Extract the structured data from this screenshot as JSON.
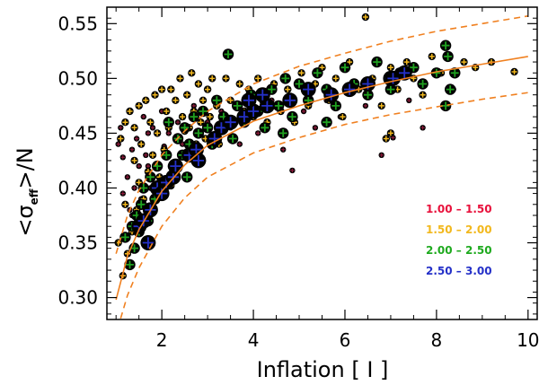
{
  "chart_data": {
    "type": "scatter",
    "title": "",
    "xlabel": "Inflation [ I ]",
    "ylabel": "<σ_eff>/N",
    "ylabel_parts": {
      "open": "<σ",
      "sub": "eff",
      "close": ">/N"
    },
    "xlim": [
      0.8,
      10.2
    ],
    "ylim": [
      0.28,
      0.565
    ],
    "xticks": [
      2,
      4,
      6,
      8,
      10
    ],
    "yticks": [
      0.3,
      0.35,
      0.4,
      0.45,
      0.5,
      0.55
    ],
    "ytick_labels": [
      "0.30",
      "0.35",
      "0.40",
      "0.45",
      "0.50",
      "0.55"
    ],
    "legend": [
      {
        "label": "1.00 – 1.50",
        "color": "#e8113c"
      },
      {
        "label": "1.50 – 2.00",
        "color": "#f2b81e"
      },
      {
        "label": "2.00 – 2.50",
        "color": "#1faa1f"
      },
      {
        "label": "2.50 – 3.00",
        "color": "#2430c8"
      }
    ],
    "colors": {
      "class1": "#8b1a3a",
      "class2": "#f2b81e",
      "class3": "#1fa01f",
      "class4": "#2430c8",
      "fit": "#f08020",
      "marker_edge": "#000000"
    },
    "fit_curves": [
      {
        "name": "central",
        "style": "solid",
        "x": [
          1.0,
          1.25,
          1.5,
          2.0,
          2.5,
          3.0,
          4.0,
          5.0,
          6.0,
          7.0,
          8.0,
          9.0,
          10.0
        ],
        "y": [
          0.298,
          0.338,
          0.362,
          0.397,
          0.421,
          0.439,
          0.461,
          0.475,
          0.487,
          0.497,
          0.506,
          0.513,
          0.52
        ]
      },
      {
        "name": "upper",
        "style": "dashed",
        "x": [
          1.0,
          1.25,
          1.5,
          2.0,
          2.5,
          3.0,
          4.0,
          5.0,
          6.0,
          7.0,
          8.0,
          9.0,
          10.0
        ],
        "y": [
          0.34,
          0.375,
          0.398,
          0.43,
          0.452,
          0.47,
          0.495,
          0.511,
          0.523,
          0.534,
          0.543,
          0.55,
          0.557
        ]
      },
      {
        "name": "lower",
        "style": "dashed",
        "x": [
          1.1,
          1.25,
          1.5,
          2.0,
          2.5,
          3.0,
          4.0,
          5.0,
          6.0,
          7.0,
          8.0,
          9.0,
          10.0
        ],
        "y": [
          0.281,
          0.302,
          0.327,
          0.365,
          0.391,
          0.41,
          0.432,
          0.446,
          0.458,
          0.467,
          0.474,
          0.481,
          0.487
        ]
      }
    ],
    "series": [
      {
        "name": "1.00 – 1.50",
        "size_class": 1,
        "points": [
          [
            1.05,
            0.44
          ],
          [
            1.1,
            0.455
          ],
          [
            1.15,
            0.428
          ],
          [
            1.2,
            0.46
          ],
          [
            1.25,
            0.41
          ],
          [
            1.3,
            0.38
          ],
          [
            1.35,
            0.435
          ],
          [
            1.4,
            0.4
          ],
          [
            1.45,
            0.445
          ],
          [
            1.5,
            0.42
          ],
          [
            1.55,
            0.39
          ],
          [
            1.6,
            0.465
          ],
          [
            1.65,
            0.43
          ],
          [
            1.7,
            0.45
          ],
          [
            1.75,
            0.4
          ],
          [
            1.8,
            0.455
          ],
          [
            1.9,
            0.42
          ],
          [
            2.0,
            0.47
          ],
          [
            2.05,
            0.438
          ],
          [
            2.15,
            0.45
          ],
          [
            2.25,
            0.415
          ],
          [
            2.35,
            0.46
          ],
          [
            2.45,
            0.44
          ],
          [
            2.6,
            0.43
          ],
          [
            2.7,
            0.475
          ],
          [
            2.8,
            0.45
          ],
          [
            2.9,
            0.425
          ],
          [
            3.0,
            0.46
          ],
          [
            3.15,
            0.445
          ],
          [
            3.3,
            0.47
          ],
          [
            3.5,
            0.455
          ],
          [
            3.7,
            0.44
          ],
          [
            3.85,
            0.465
          ],
          [
            4.1,
            0.45
          ],
          [
            4.4,
            0.48
          ],
          [
            4.65,
            0.435
          ],
          [
            4.85,
            0.416
          ],
          [
            5.1,
            0.47
          ],
          [
            5.35,
            0.455
          ],
          [
            5.6,
            0.48
          ],
          [
            5.9,
            0.465
          ],
          [
            6.2,
            0.49
          ],
          [
            6.45,
            0.475
          ],
          [
            6.8,
            0.43
          ],
          [
            7.05,
            0.446
          ],
          [
            7.4,
            0.48
          ],
          [
            7.7,
            0.455
          ],
          [
            1.15,
            0.395
          ],
          [
            1.35,
            0.375
          ],
          [
            1.7,
            0.42
          ]
        ]
      },
      {
        "name": "1.50 – 2.00",
        "size_class": 2,
        "points": [
          [
            1.05,
            0.35
          ],
          [
            1.1,
            0.445
          ],
          [
            1.2,
            0.46
          ],
          [
            1.25,
            0.34
          ],
          [
            1.3,
            0.47
          ],
          [
            1.35,
            0.36
          ],
          [
            1.4,
            0.455
          ],
          [
            1.45,
            0.38
          ],
          [
            1.5,
            0.475
          ],
          [
            1.55,
            0.44
          ],
          [
            1.6,
            0.39
          ],
          [
            1.65,
            0.48
          ],
          [
            1.7,
            0.415
          ],
          [
            1.75,
            0.46
          ],
          [
            1.8,
            0.43
          ],
          [
            1.85,
            0.485
          ],
          [
            1.9,
            0.45
          ],
          [
            1.95,
            0.41
          ],
          [
            2.0,
            0.49
          ],
          [
            2.05,
            0.435
          ],
          [
            2.1,
            0.47
          ],
          [
            2.15,
            0.455
          ],
          [
            2.2,
            0.49
          ],
          [
            2.25,
            0.42
          ],
          [
            2.3,
            0.48
          ],
          [
            2.35,
            0.445
          ],
          [
            2.4,
            0.5
          ],
          [
            2.45,
            0.465
          ],
          [
            2.5,
            0.43
          ],
          [
            2.55,
            0.485
          ],
          [
            2.6,
            0.455
          ],
          [
            2.65,
            0.505
          ],
          [
            2.7,
            0.47
          ],
          [
            2.75,
            0.44
          ],
          [
            2.8,
            0.495
          ],
          [
            2.85,
            0.46
          ],
          [
            2.9,
            0.48
          ],
          [
            2.95,
            0.445
          ],
          [
            3.0,
            0.49
          ],
          [
            3.05,
            0.465
          ],
          [
            3.1,
            0.5
          ],
          [
            3.2,
            0.475
          ],
          [
            3.3,
            0.455
          ],
          [
            3.4,
            0.5
          ],
          [
            3.5,
            0.48
          ],
          [
            3.6,
            0.46
          ],
          [
            3.7,
            0.495
          ],
          [
            3.8,
            0.47
          ],
          [
            3.9,
            0.49
          ],
          [
            4.0,
            0.465
          ],
          [
            4.1,
            0.5
          ],
          [
            4.2,
            0.48
          ],
          [
            4.3,
            0.46
          ],
          [
            4.45,
            0.495
          ],
          [
            4.6,
            0.47
          ],
          [
            4.75,
            0.49
          ],
          [
            4.9,
            0.46
          ],
          [
            5.05,
            0.505
          ],
          [
            5.2,
            0.475
          ],
          [
            5.35,
            0.495
          ],
          [
            5.5,
            0.51
          ],
          [
            5.65,
            0.48
          ],
          [
            5.8,
            0.5
          ],
          [
            5.95,
            0.465
          ],
          [
            6.1,
            0.515
          ],
          [
            6.3,
            0.49
          ],
          [
            6.45,
            0.556
          ],
          [
            6.6,
            0.5
          ],
          [
            6.8,
            0.475
          ],
          [
            7.0,
            0.51
          ],
          [
            7.15,
            0.49
          ],
          [
            7.35,
            0.515
          ],
          [
            7.5,
            0.5
          ],
          [
            7.7,
            0.485
          ],
          [
            7.9,
            0.52
          ],
          [
            8.1,
            0.505
          ],
          [
            8.35,
            0.49
          ],
          [
            8.6,
            0.515
          ],
          [
            8.85,
            0.51
          ],
          [
            9.2,
            0.515
          ],
          [
            9.7,
            0.506
          ],
          [
            6.9,
            0.445
          ],
          [
            7.0,
            0.45
          ],
          [
            1.15,
            0.32
          ],
          [
            1.2,
            0.385
          ],
          [
            1.5,
            0.405
          ],
          [
            1.4,
            0.425
          ],
          [
            2.2,
            0.402
          ],
          [
            2.5,
            0.452
          ],
          [
            3.25,
            0.44
          ]
        ]
      },
      {
        "name": "2.00 – 2.50",
        "size_class": 3,
        "points": [
          [
            1.2,
            0.355
          ],
          [
            1.3,
            0.33
          ],
          [
            1.35,
            0.365
          ],
          [
            1.4,
            0.345
          ],
          [
            1.45,
            0.375
          ],
          [
            1.5,
            0.36
          ],
          [
            1.55,
            0.385
          ],
          [
            1.6,
            0.4
          ],
          [
            1.7,
            0.37
          ],
          [
            1.75,
            0.41
          ],
          [
            1.85,
            0.39
          ],
          [
            1.9,
            0.42
          ],
          [
            2.0,
            0.405
          ],
          [
            2.1,
            0.43
          ],
          [
            2.15,
            0.46
          ],
          [
            2.25,
            0.42
          ],
          [
            2.35,
            0.445
          ],
          [
            2.45,
            0.43
          ],
          [
            2.5,
            0.455
          ],
          [
            2.6,
            0.44
          ],
          [
            2.7,
            0.465
          ],
          [
            2.8,
            0.45
          ],
          [
            2.9,
            0.47
          ],
          [
            3.0,
            0.455
          ],
          [
            3.1,
            0.44
          ],
          [
            3.2,
            0.48
          ],
          [
            3.35,
            0.465
          ],
          [
            3.45,
            0.522
          ],
          [
            3.55,
            0.445
          ],
          [
            3.65,
            0.475
          ],
          [
            3.8,
            0.46
          ],
          [
            3.95,
            0.485
          ],
          [
            4.1,
            0.47
          ],
          [
            4.25,
            0.455
          ],
          [
            4.4,
            0.49
          ],
          [
            4.55,
            0.475
          ],
          [
            4.7,
            0.5
          ],
          [
            4.85,
            0.465
          ],
          [
            5.0,
            0.495
          ],
          [
            5.2,
            0.48
          ],
          [
            5.4,
            0.505
          ],
          [
            5.6,
            0.49
          ],
          [
            5.8,
            0.475
          ],
          [
            6.0,
            0.51
          ],
          [
            6.2,
            0.495
          ],
          [
            6.5,
            0.485
          ],
          [
            6.7,
            0.515
          ],
          [
            7.0,
            0.49
          ],
          [
            7.2,
            0.505
          ],
          [
            7.5,
            0.51
          ],
          [
            7.7,
            0.495
          ],
          [
            8.0,
            0.505
          ],
          [
            8.2,
            0.53
          ],
          [
            8.25,
            0.52
          ],
          [
            8.4,
            0.505
          ],
          [
            8.2,
            0.475
          ],
          [
            8.3,
            0.49
          ],
          [
            5.6,
            0.46
          ],
          [
            4.65,
            0.45
          ],
          [
            2.55,
            0.41
          ]
        ]
      },
      {
        "name": "2.50 – 3.00",
        "size_class": 4,
        "points": [
          [
            1.5,
            0.365
          ],
          [
            1.6,
            0.37
          ],
          [
            1.7,
            0.35
          ],
          [
            1.9,
            0.4
          ],
          [
            2.0,
            0.395
          ],
          [
            2.1,
            0.405
          ],
          [
            2.25,
            0.41
          ],
          [
            2.6,
            0.43
          ],
          [
            2.75,
            0.435
          ],
          [
            2.8,
            0.425
          ],
          [
            3.15,
            0.445
          ],
          [
            3.3,
            0.455
          ],
          [
            3.5,
            0.46
          ],
          [
            3.8,
            0.465
          ],
          [
            4.0,
            0.47
          ],
          [
            4.3,
            0.475
          ],
          [
            4.8,
            0.48
          ],
          [
            5.2,
            0.49
          ],
          [
            5.7,
            0.485
          ],
          [
            6.5,
            0.495
          ],
          [
            7.0,
            0.5
          ],
          [
            7.05,
            0.5
          ],
          [
            7.3,
            0.505
          ],
          [
            3.9,
            0.48
          ],
          [
            4.2,
            0.485
          ],
          [
            2.3,
            0.42
          ],
          [
            1.75,
            0.38
          ],
          [
            6.1,
            0.49
          ]
        ]
      }
    ]
  }
}
